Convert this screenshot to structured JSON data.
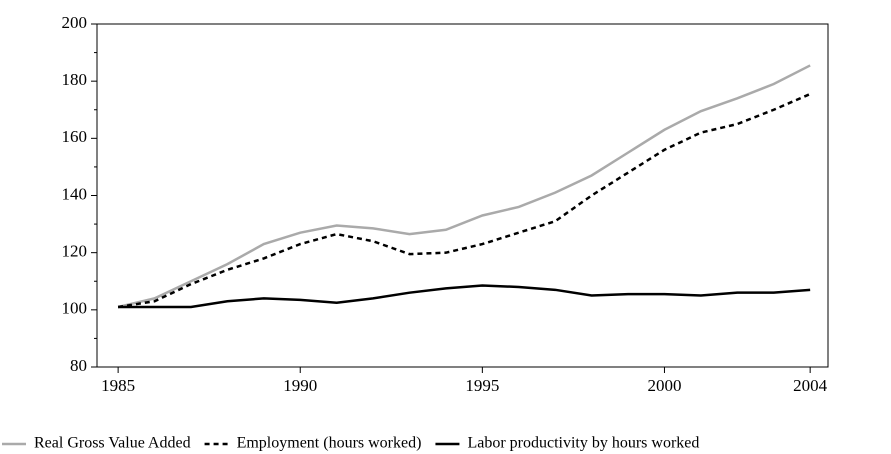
{
  "chart_data": {
    "type": "line",
    "x": [
      1985,
      1986,
      1987,
      1988,
      1989,
      1990,
      1991,
      1992,
      1993,
      1994,
      1995,
      1996,
      1997,
      1998,
      1999,
      2000,
      2001,
      2002,
      2003,
      2004
    ],
    "series": [
      {
        "name": "Real Gross Value Added",
        "color": "#aaaaaa",
        "dash": "solid",
        "values": [
          101,
          104,
          110,
          116,
          123,
          127,
          129.5,
          128.5,
          126.5,
          128,
          133,
          136,
          141,
          147,
          155,
          163,
          169.5,
          174,
          179,
          185.5
        ]
      },
      {
        "name": "Employment (hours worked)",
        "color": "#000000",
        "dash": "dashed",
        "values": [
          101,
          103,
          109,
          114,
          118,
          123,
          126.5,
          124,
          119.5,
          120,
          123,
          127,
          131,
          140,
          148,
          156,
          162,
          165,
          170,
          175.5
        ]
      },
      {
        "name": "Labor productivity by hours worked",
        "color": "#000000",
        "dash": "solid",
        "values": [
          101,
          101,
          101,
          103,
          104,
          103.5,
          102.5,
          104,
          106,
          107.5,
          108.5,
          108,
          107,
          105,
          105.5,
          105.5,
          105,
          106,
          106,
          107
        ]
      }
    ],
    "xlim": [
      1984.42,
      2004.49
    ],
    "xticks": [
      1985,
      1990,
      1995,
      2000,
      2004
    ],
    "ylim": [
      80,
      200
    ],
    "yticks": [
      80,
      100,
      120,
      140,
      160,
      180,
      200
    ]
  }
}
